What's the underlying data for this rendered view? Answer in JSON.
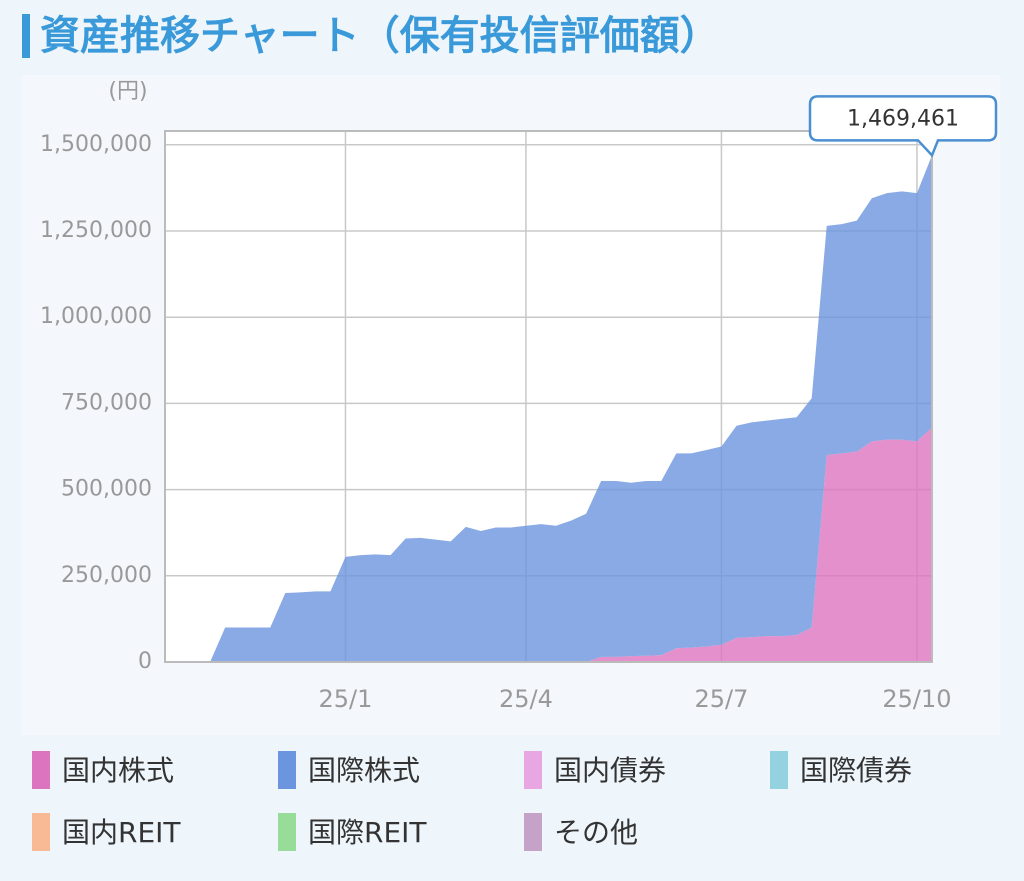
{
  "chart_data": {
    "type": "stacked_area",
    "title": "資産推移チャート（保有投信評価額）",
    "y_unit": "(円)",
    "categories": [
      null,
      null,
      null,
      null,
      null,
      null,
      null,
      null,
      null,
      null,
      null,
      null,
      "25/1",
      null,
      null,
      null,
      null,
      null,
      null,
      null,
      null,
      null,
      null,
      null,
      "25/4",
      null,
      null,
      null,
      null,
      null,
      null,
      null,
      null,
      null,
      null,
      null,
      null,
      "25/7",
      null,
      null,
      null,
      null,
      null,
      null,
      null,
      null,
      null,
      null,
      null,
      null,
      "25/10",
      null
    ],
    "series": [
      {
        "name": "国内株式",
        "color": "#dd74bf",
        "values": [
          0,
          0,
          0,
          0,
          0,
          0,
          0,
          0,
          0,
          0,
          0,
          0,
          0,
          0,
          0,
          0,
          0,
          0,
          0,
          0,
          0,
          0,
          0,
          0,
          0,
          0,
          0,
          0,
          0,
          15000,
          15000,
          17000,
          18000,
          20000,
          40000,
          42000,
          45000,
          50000,
          70000,
          72000,
          75000,
          75000,
          78000,
          100000,
          600000,
          605000,
          610000,
          640000,
          645000,
          645000,
          640000,
          680000
        ]
      },
      {
        "name": "国際株式",
        "color": "#6b95de",
        "values": [
          0,
          0,
          0,
          0,
          100000,
          100000,
          100000,
          100000,
          200000,
          202000,
          205000,
          205000,
          305000,
          310000,
          312000,
          310000,
          358000,
          360000,
          355000,
          350000,
          392000,
          380000,
          390000,
          390000,
          395000,
          400000,
          395000,
          410000,
          430000,
          510000,
          510000,
          503000,
          507000,
          505000,
          565000,
          563000,
          570000,
          575000,
          615000,
          623000,
          625000,
          630000,
          632000,
          665000,
          665000,
          665000,
          670000,
          705000,
          715000,
          720000,
          720000,
          789461
        ]
      },
      {
        "name": "国内債券",
        "color": "#e8a6e3",
        "values": [
          0,
          0,
          0,
          0,
          0,
          0,
          0,
          0,
          0,
          0,
          0,
          0,
          0,
          0,
          0,
          0,
          0,
          0,
          0,
          0,
          0,
          0,
          0,
          0,
          0,
          0,
          0,
          0,
          0,
          0,
          0,
          0,
          0,
          0,
          0,
          0,
          0,
          0,
          0,
          0,
          0,
          0,
          0,
          0,
          0,
          0,
          0,
          0,
          0,
          0,
          0,
          0
        ]
      },
      {
        "name": "国際債券",
        "color": "#93d2de",
        "values": [
          0,
          0,
          0,
          0,
          0,
          0,
          0,
          0,
          0,
          0,
          0,
          0,
          0,
          0,
          0,
          0,
          0,
          0,
          0,
          0,
          0,
          0,
          0,
          0,
          0,
          0,
          0,
          0,
          0,
          0,
          0,
          0,
          0,
          0,
          0,
          0,
          0,
          0,
          0,
          0,
          0,
          0,
          0,
          0,
          0,
          0,
          0,
          0,
          0,
          0,
          0,
          0
        ]
      },
      {
        "name": "国内REIT",
        "color": "#f8b995",
        "values": [
          0,
          0,
          0,
          0,
          0,
          0,
          0,
          0,
          0,
          0,
          0,
          0,
          0,
          0,
          0,
          0,
          0,
          0,
          0,
          0,
          0,
          0,
          0,
          0,
          0,
          0,
          0,
          0,
          0,
          0,
          0,
          0,
          0,
          0,
          0,
          0,
          0,
          0,
          0,
          0,
          0,
          0,
          0,
          0,
          0,
          0,
          0,
          0,
          0,
          0,
          0,
          0
        ]
      },
      {
        "name": "国際REIT",
        "color": "#97dc99",
        "values": [
          0,
          0,
          0,
          0,
          0,
          0,
          0,
          0,
          0,
          0,
          0,
          0,
          0,
          0,
          0,
          0,
          0,
          0,
          0,
          0,
          0,
          0,
          0,
          0,
          0,
          0,
          0,
          0,
          0,
          0,
          0,
          0,
          0,
          0,
          0,
          0,
          0,
          0,
          0,
          0,
          0,
          0,
          0,
          0,
          0,
          0,
          0,
          0,
          0,
          0,
          0,
          0
        ]
      },
      {
        "name": "その他",
        "color": "#c5a3c8",
        "values": [
          0,
          0,
          0,
          0,
          0,
          0,
          0,
          0,
          0,
          0,
          0,
          0,
          0,
          0,
          0,
          0,
          0,
          0,
          0,
          0,
          0,
          0,
          0,
          0,
          0,
          0,
          0,
          0,
          0,
          0,
          0,
          0,
          0,
          0,
          0,
          0,
          0,
          0,
          0,
          0,
          0,
          0,
          0,
          0,
          0,
          0,
          0,
          0,
          0,
          0,
          0,
          0
        ]
      }
    ],
    "ylim": [
      0,
      1540000
    ],
    "yticks": [
      0,
      {
        "value": 250000,
        "label": "250,000"
      },
      {
        "value": 500000,
        "label": "500,000"
      },
      {
        "value": 750000,
        "label": "750,000"
      },
      {
        "value": 1000000,
        "label": "1,000,000"
      },
      {
        "value": 1250000,
        "label": "1,250,000"
      },
      {
        "value": 1500000,
        "label": "1,500,000"
      }
    ],
    "grid": true,
    "callout": {
      "value": 1469461,
      "label": "1,469,461"
    }
  }
}
